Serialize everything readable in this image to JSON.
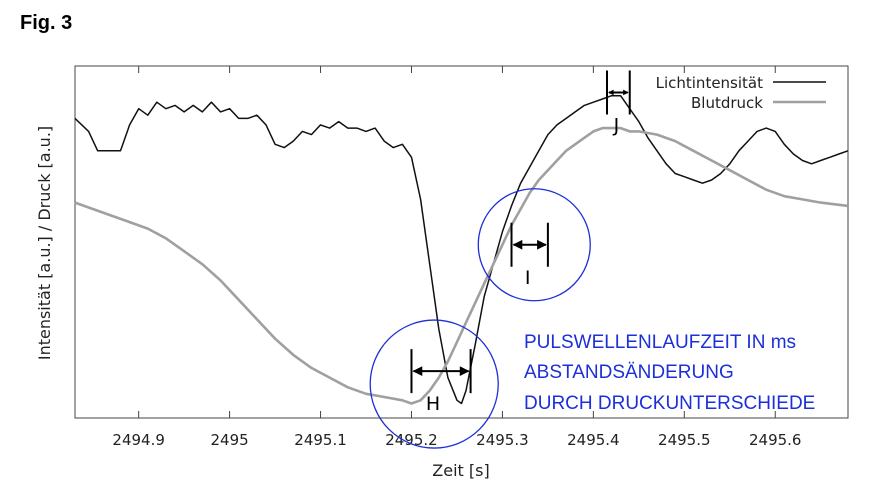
{
  "figure_label": "Fig. 3",
  "chart_data": {
    "type": "line",
    "xlabel": "Zeit [s]",
    "ylabel": "Intensität [a.u.] / Druck [a.u.]",
    "xlim": [
      2494.83,
      2495.68
    ],
    "ylim": [
      0,
      1
    ],
    "x_ticks": [
      2494.9,
      2495,
      2495.1,
      2495.2,
      2495.3,
      2495.4,
      2495.5,
      2495.6
    ],
    "x_tick_labels": [
      "2494.9",
      "2495",
      "2495.1",
      "2495.2",
      "2495.3",
      "2495.4",
      "2495.5",
      "2495.6"
    ],
    "legend_position": "top-right",
    "grid": false,
    "series": [
      {
        "name": "Lichtintensität",
        "color": "#111111",
        "x": [
          2494.83,
          2494.845,
          2494.855,
          2494.87,
          2494.88,
          2494.89,
          2494.9,
          2494.91,
          2494.92,
          2494.93,
          2494.94,
          2494.95,
          2494.96,
          2494.97,
          2494.98,
          2494.99,
          2495.0,
          2495.01,
          2495.02,
          2495.03,
          2495.04,
          2495.05,
          2495.06,
          2495.07,
          2495.08,
          2495.09,
          2495.1,
          2495.11,
          2495.12,
          2495.13,
          2495.14,
          2495.15,
          2495.16,
          2495.17,
          2495.18,
          2495.19,
          2495.2,
          2495.21,
          2495.22,
          2495.23,
          2495.24,
          2495.25,
          2495.255,
          2495.26,
          2495.27,
          2495.28,
          2495.29,
          2495.3,
          2495.31,
          2495.32,
          2495.33,
          2495.34,
          2495.35,
          2495.36,
          2495.37,
          2495.38,
          2495.39,
          2495.4,
          2495.41,
          2495.42,
          2495.43,
          2495.44,
          2495.45,
          2495.46,
          2495.47,
          2495.48,
          2495.49,
          2495.5,
          2495.51,
          2495.52,
          2495.53,
          2495.54,
          2495.55,
          2495.56,
          2495.57,
          2495.58,
          2495.59,
          2495.6,
          2495.61,
          2495.62,
          2495.63,
          2495.64,
          2495.65,
          2495.66,
          2495.67,
          2495.68
        ],
        "y": [
          0.9,
          0.86,
          0.8,
          0.8,
          0.8,
          0.88,
          0.93,
          0.91,
          0.95,
          0.93,
          0.94,
          0.92,
          0.94,
          0.92,
          0.95,
          0.92,
          0.93,
          0.9,
          0.9,
          0.91,
          0.88,
          0.82,
          0.81,
          0.83,
          0.86,
          0.85,
          0.88,
          0.87,
          0.89,
          0.87,
          0.87,
          0.86,
          0.87,
          0.83,
          0.81,
          0.82,
          0.78,
          0.65,
          0.45,
          0.25,
          0.1,
          0.03,
          0.02,
          0.06,
          0.2,
          0.35,
          0.45,
          0.55,
          0.63,
          0.7,
          0.75,
          0.8,
          0.85,
          0.88,
          0.9,
          0.92,
          0.94,
          0.95,
          0.96,
          0.97,
          0.97,
          0.93,
          0.89,
          0.84,
          0.8,
          0.76,
          0.73,
          0.72,
          0.71,
          0.7,
          0.71,
          0.73,
          0.76,
          0.8,
          0.83,
          0.86,
          0.87,
          0.86,
          0.82,
          0.79,
          0.77,
          0.76,
          0.77,
          0.78,
          0.79,
          0.8
        ]
      },
      {
        "name": "Blutdruck",
        "color": "#a0a0a0",
        "x": [
          2494.83,
          2494.85,
          2494.87,
          2494.89,
          2494.91,
          2494.93,
          2494.95,
          2494.97,
          2494.99,
          2495.01,
          2495.03,
          2495.05,
          2495.07,
          2495.09,
          2495.11,
          2495.13,
          2495.15,
          2495.17,
          2495.19,
          2495.2,
          2495.21,
          2495.22,
          2495.23,
          2495.24,
          2495.25,
          2495.26,
          2495.27,
          2495.28,
          2495.29,
          2495.3,
          2495.31,
          2495.32,
          2495.33,
          2495.34,
          2495.35,
          2495.36,
          2495.37,
          2495.38,
          2495.39,
          2495.4,
          2495.41,
          2495.42,
          2495.43,
          2495.44,
          2495.45,
          2495.47,
          2495.49,
          2495.51,
          2495.53,
          2495.55,
          2495.57,
          2495.59,
          2495.61,
          2495.63,
          2495.65,
          2495.68
        ],
        "y": [
          0.64,
          0.62,
          0.6,
          0.58,
          0.56,
          0.53,
          0.49,
          0.45,
          0.4,
          0.34,
          0.28,
          0.22,
          0.17,
          0.13,
          0.1,
          0.07,
          0.05,
          0.04,
          0.03,
          0.02,
          0.03,
          0.06,
          0.1,
          0.15,
          0.21,
          0.27,
          0.33,
          0.39,
          0.45,
          0.51,
          0.57,
          0.62,
          0.67,
          0.71,
          0.74,
          0.77,
          0.8,
          0.82,
          0.84,
          0.86,
          0.87,
          0.87,
          0.87,
          0.86,
          0.86,
          0.85,
          0.83,
          0.8,
          0.77,
          0.74,
          0.71,
          0.68,
          0.66,
          0.65,
          0.64,
          0.63
        ]
      }
    ],
    "markers": [
      {
        "label": "H",
        "x_start": 2495.2,
        "x_end": 2495.265,
        "y": 0.12,
        "circle_center": [
          2495.225,
          0.08
        ]
      },
      {
        "label": "I",
        "x_start": 2495.31,
        "x_end": 2495.35,
        "y": 0.51,
        "circle_center": [
          2495.335,
          0.51
        ]
      },
      {
        "label": "J",
        "x_start": 2495.415,
        "x_end": 2495.44,
        "y": 0.98
      }
    ],
    "annotation_lines": [
      "PULSWELLENLAUFZEIT IN ms",
      "ABSTANDSÄNDERUNG",
      "DURCH DRUCKUNTERSCHIEDE"
    ],
    "annotation_color": "#1c2fd8"
  }
}
